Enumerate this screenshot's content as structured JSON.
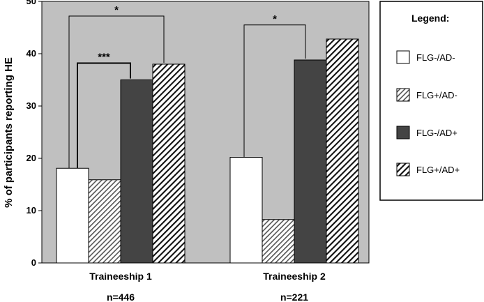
{
  "chart_data": {
    "type": "bar",
    "ylabel": "% of participants reporting HE",
    "ylim": [
      0,
      50
    ],
    "yticks": [
      0,
      10,
      20,
      30,
      40,
      50
    ],
    "categories": [
      "Traineeship 1",
      "Traineeship 2"
    ],
    "sample_sizes": [
      "n=446",
      "n=221"
    ],
    "grid": false,
    "legend_title": "Legend:",
    "legend_position": "right",
    "series": [
      {
        "name": "FLG-/AD-",
        "values": [
          18.1,
          20.2
        ],
        "color": "#ffffff",
        "pattern": "solid"
      },
      {
        "name": "FLG+/AD-",
        "values": [
          15.9,
          8.3
        ],
        "color": "#777777",
        "pattern": "hatch-light"
      },
      {
        "name": "FLG-/AD+",
        "values": [
          35.0,
          38.8
        ],
        "color": "#444444",
        "pattern": "solid"
      },
      {
        "name": "FLG+/AD+",
        "values": [
          38.0,
          42.8
        ],
        "color": "#222222",
        "pattern": "hatch-dark"
      }
    ],
    "annotations": [
      {
        "category": 0,
        "from_series": 0,
        "to_series": 3,
        "label": "*",
        "y": 47.2
      },
      {
        "category": 0,
        "from_series": 0,
        "to_series": 2,
        "label": "***",
        "y": 38.2
      },
      {
        "category": 1,
        "from_series": 0,
        "to_series": 2,
        "label": "*",
        "y": 45.5
      }
    ],
    "plot_background": "#c0c0c0"
  }
}
